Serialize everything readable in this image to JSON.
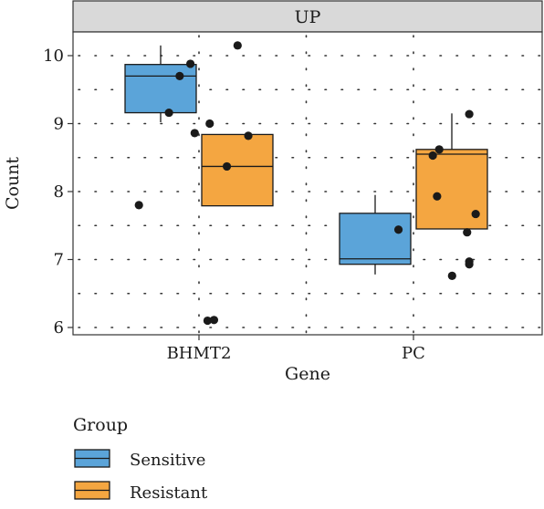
{
  "chart_data": {
    "type": "boxplot",
    "facet_label": "UP",
    "xlabel": "Gene",
    "ylabel": "Count",
    "categories": [
      "BHMT2",
      "PC"
    ],
    "ylim": [
      5.95,
      10.4
    ],
    "yticks": [
      6,
      7,
      8,
      9,
      10
    ],
    "grid": "dotted",
    "legend": {
      "title": "Group",
      "position": "bottom-left",
      "entries": [
        "Sensitive",
        "Resistant"
      ]
    },
    "colors": {
      "Sensitive": "#5BA4D9",
      "Resistant": "#F4A641",
      "strip": "#D9D9D9"
    },
    "series": [
      {
        "name": "Sensitive",
        "boxes": [
          {
            "category": "BHMT2",
            "whisker_low": 9.02,
            "q1": 9.16,
            "median": 9.7,
            "q3": 9.87,
            "whisker_high": 10.15
          },
          {
            "category": "PC",
            "whisker_low": 6.78,
            "q1": 6.93,
            "median": 7.01,
            "q3": 7.68,
            "whisker_high": 7.95
          }
        ],
        "points": [
          {
            "category": "BHMT2",
            "jitter": -0.28,
            "y": 7.8
          },
          {
            "category": "BHMT2",
            "jitter": -0.14,
            "y": 9.16
          },
          {
            "category": "BHMT2",
            "jitter": -0.09,
            "y": 9.7
          },
          {
            "category": "BHMT2",
            "jitter": -0.04,
            "y": 9.88
          },
          {
            "category": "BHMT2",
            "jitter": -0.02,
            "y": 8.86
          },
          {
            "category": "PC",
            "jitter": -0.07,
            "y": 7.44
          }
        ]
      },
      {
        "name": "Resistant",
        "boxes": [
          {
            "category": "BHMT2",
            "whisker_low": 7.79,
            "q1": 7.79,
            "median": 8.37,
            "q3": 8.84,
            "whisker_high": 8.84
          },
          {
            "category": "PC",
            "whisker_low": 7.45,
            "q1": 7.45,
            "median": 8.55,
            "q3": 8.62,
            "whisker_high": 9.15
          }
        ],
        "points": [
          {
            "category": "BHMT2",
            "jitter": 0.05,
            "y": 9.0
          },
          {
            "category": "BHMT2",
            "jitter": 0.18,
            "y": 10.15
          },
          {
            "category": "BHMT2",
            "jitter": 0.23,
            "y": 8.82
          },
          {
            "category": "BHMT2",
            "jitter": 0.13,
            "y": 8.37
          },
          {
            "category": "BHMT2",
            "jitter": 0.04,
            "y": 6.1
          },
          {
            "category": "BHMT2",
            "jitter": 0.07,
            "y": 6.11
          },
          {
            "category": "PC",
            "jitter": 0.09,
            "y": 8.53
          },
          {
            "category": "PC",
            "jitter": 0.12,
            "y": 8.62
          },
          {
            "category": "PC",
            "jitter": 0.11,
            "y": 7.93
          },
          {
            "category": "PC",
            "jitter": 0.18,
            "y": 6.76
          },
          {
            "category": "PC",
            "jitter": 0.26,
            "y": 9.14
          },
          {
            "category": "PC",
            "jitter": 0.29,
            "y": 7.67
          },
          {
            "category": "PC",
            "jitter": 0.25,
            "y": 7.4
          },
          {
            "category": "PC",
            "jitter": 0.26,
            "y": 6.97
          },
          {
            "category": "PC",
            "jitter": 0.26,
            "y": 6.93
          }
        ]
      }
    ]
  }
}
